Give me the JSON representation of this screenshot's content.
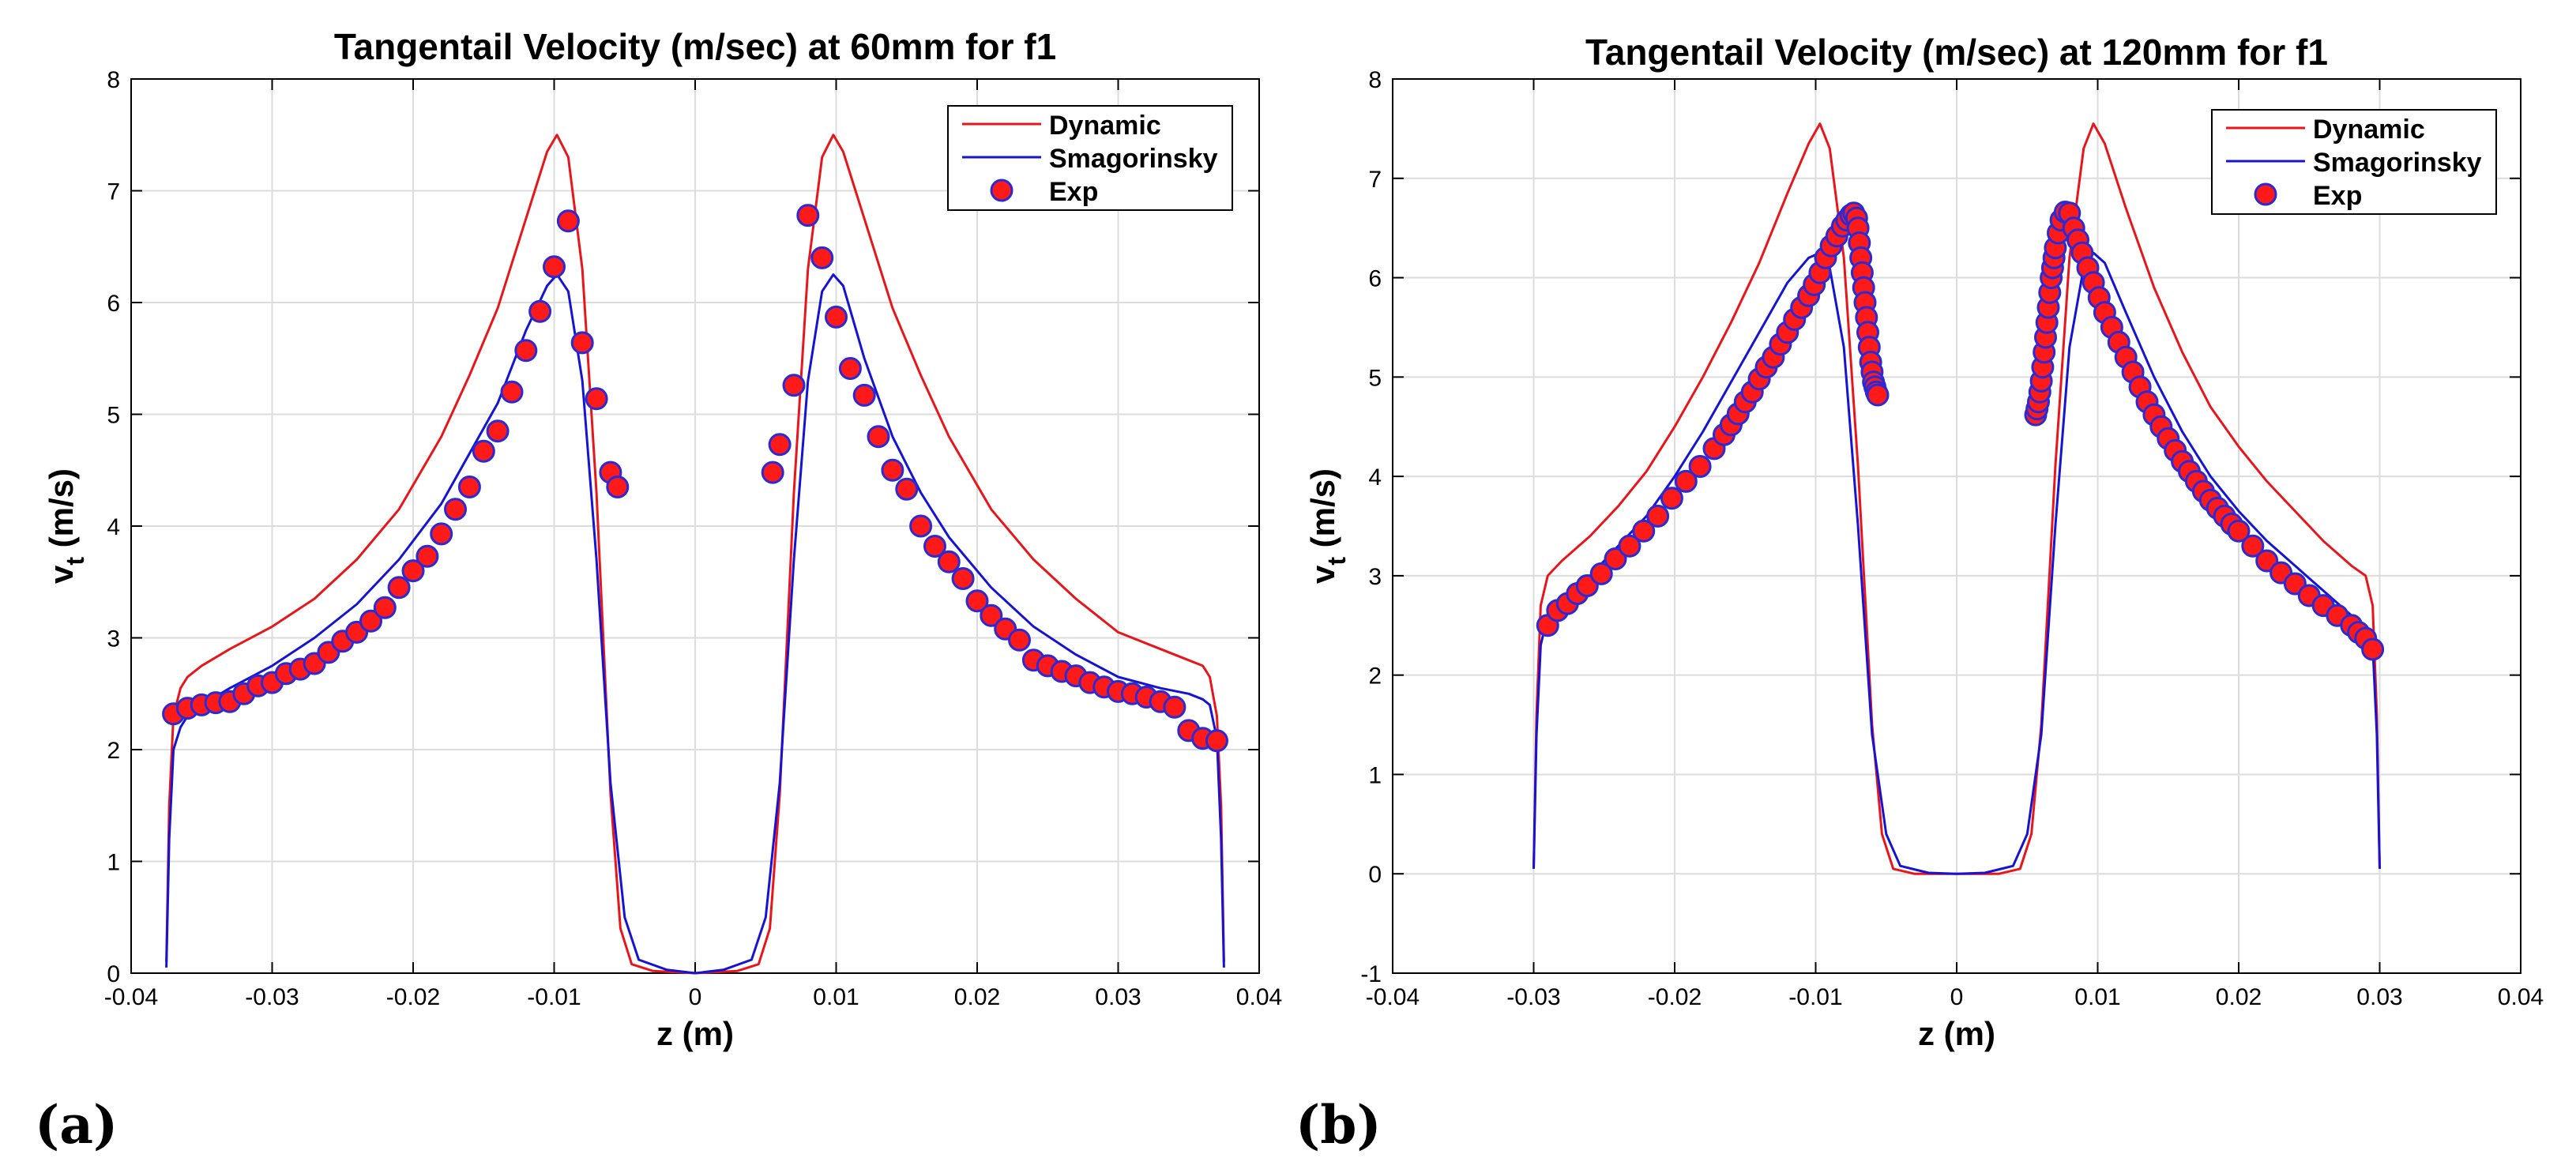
{
  "figure": {
    "panel_labels": [
      "(a)",
      "(b)"
    ]
  },
  "colors": {
    "dynamic": "#e8161b",
    "smagorinsky": "#1414d2",
    "exp_fill": "#ff1a1a",
    "exp_edge": "#2a2ad6",
    "grid": "#dcdcdc",
    "axis": "#000000"
  },
  "chart_data": [
    {
      "type": "line",
      "title": "Tangentail Velocity (m/sec) at 60mm for f1",
      "xlabel": "z (m)",
      "ylabel_main": "v",
      "ylabel_sub": "t",
      "ylabel_unit": " (m/s)",
      "xlim": [
        -0.04,
        0.04
      ],
      "ylim": [
        0,
        8
      ],
      "xticks": [
        -0.04,
        -0.03,
        -0.02,
        -0.01,
        0,
        0.01,
        0.02,
        0.03,
        0.04
      ],
      "xtick_labels": [
        "-0.04",
        "-0.03",
        "-0.02",
        "-0.01",
        "0",
        "0.01",
        "0.02",
        "0.03",
        "0.04"
      ],
      "yticks": [
        0,
        1,
        2,
        3,
        4,
        5,
        6,
        7,
        8
      ],
      "ytick_labels": [
        "0",
        "1",
        "2",
        "3",
        "4",
        "5",
        "6",
        "7",
        "8"
      ],
      "grid": true,
      "legend": {
        "position": "top-right",
        "entries": [
          "Dynamic",
          "Smagorinsky",
          "Exp"
        ]
      },
      "series": [
        {
          "name": "Dynamic",
          "kind": "line",
          "x": [
            -0.0375,
            -0.0373,
            -0.037,
            -0.0365,
            -0.036,
            -0.035,
            -0.033,
            -0.03,
            -0.027,
            -0.024,
            -0.021,
            -0.018,
            -0.016,
            -0.014,
            -0.012,
            -0.0105,
            -0.0098,
            -0.009,
            -0.008,
            -0.007,
            -0.006,
            -0.0053,
            -0.0045,
            -0.003,
            0,
            0.003,
            0.0045,
            0.0053,
            0.006,
            0.007,
            0.008,
            0.009,
            0.0098,
            0.0105,
            0.012,
            0.014,
            0.016,
            0.018,
            0.021,
            0.024,
            0.027,
            0.03,
            0.033,
            0.035,
            0.036,
            0.0365,
            0.037,
            0.0373,
            0.0375
          ],
          "y": [
            0.1,
            1.5,
            2.3,
            2.55,
            2.65,
            2.75,
            2.9,
            3.1,
            3.35,
            3.7,
            4.15,
            4.8,
            5.35,
            5.95,
            6.75,
            7.35,
            7.5,
            7.3,
            6.3,
            4.3,
            1.6,
            0.4,
            0.08,
            0.02,
            0.0,
            0.02,
            0.08,
            0.4,
            1.6,
            4.3,
            6.3,
            7.3,
            7.5,
            7.35,
            6.75,
            5.95,
            5.35,
            4.8,
            4.15,
            3.7,
            3.35,
            3.05,
            2.9,
            2.8,
            2.75,
            2.65,
            2.3,
            1.5,
            0.1
          ]
        },
        {
          "name": "Smagorinsky",
          "kind": "line",
          "x": [
            -0.0375,
            -0.0373,
            -0.037,
            -0.0365,
            -0.036,
            -0.035,
            -0.033,
            -0.03,
            -0.027,
            -0.024,
            -0.021,
            -0.018,
            -0.016,
            -0.014,
            -0.012,
            -0.0105,
            -0.0098,
            -0.009,
            -0.008,
            -0.007,
            -0.006,
            -0.005,
            -0.004,
            -0.002,
            0,
            0.002,
            0.004,
            0.005,
            0.006,
            0.007,
            0.008,
            0.009,
            0.0098,
            0.0105,
            0.012,
            0.014,
            0.016,
            0.018,
            0.021,
            0.024,
            0.027,
            0.03,
            0.033,
            0.035,
            0.036,
            0.0365,
            0.037,
            0.0373,
            0.0375
          ],
          "y": [
            0.05,
            1.2,
            2.0,
            2.2,
            2.3,
            2.4,
            2.55,
            2.75,
            3.0,
            3.3,
            3.7,
            4.2,
            4.65,
            5.1,
            5.75,
            6.15,
            6.25,
            6.1,
            5.3,
            3.7,
            1.7,
            0.5,
            0.12,
            0.03,
            0.0,
            0.03,
            0.12,
            0.5,
            1.7,
            3.7,
            5.3,
            6.1,
            6.25,
            6.15,
            5.5,
            4.8,
            4.3,
            3.9,
            3.45,
            3.1,
            2.85,
            2.65,
            2.55,
            2.5,
            2.45,
            2.4,
            2.1,
            1.2,
            0.05
          ]
        },
        {
          "name": "Exp",
          "kind": "scatter",
          "x": [
            -0.037,
            -0.036,
            -0.035,
            -0.034,
            -0.033,
            -0.032,
            -0.031,
            -0.03,
            -0.029,
            -0.028,
            -0.027,
            -0.026,
            -0.025,
            -0.024,
            -0.023,
            -0.022,
            -0.021,
            -0.02,
            -0.019,
            -0.018,
            -0.017,
            -0.016,
            -0.015,
            -0.014,
            -0.013,
            -0.012,
            -0.011,
            -0.01,
            -0.009,
            -0.008,
            -0.007,
            -0.006,
            -0.0055,
            0.0055,
            0.006,
            0.007,
            0.008,
            0.009,
            0.01,
            0.011,
            0.012,
            0.013,
            0.014,
            0.015,
            0.016,
            0.017,
            0.018,
            0.019,
            0.02,
            0.021,
            0.022,
            0.023,
            0.024,
            0.025,
            0.026,
            0.027,
            0.028,
            0.029,
            0.03,
            0.031,
            0.032,
            0.033,
            0.034,
            0.035,
            0.036,
            0.037
          ],
          "y": [
            2.32,
            2.37,
            2.4,
            2.42,
            2.43,
            2.5,
            2.57,
            2.6,
            2.68,
            2.72,
            2.77,
            2.87,
            2.97,
            3.05,
            3.15,
            3.27,
            3.45,
            3.6,
            3.73,
            3.93,
            4.15,
            4.35,
            4.67,
            4.85,
            5.2,
            5.57,
            5.92,
            6.32,
            6.73,
            5.64,
            5.14,
            4.48,
            4.35,
            4.48,
            4.73,
            5.26,
            6.78,
            6.4,
            5.87,
            5.41,
            5.17,
            4.8,
            4.5,
            4.33,
            4.0,
            3.82,
            3.68,
            3.53,
            3.33,
            3.2,
            3.08,
            2.98,
            2.8,
            2.75,
            2.7,
            2.66,
            2.6,
            2.56,
            2.52,
            2.5,
            2.47,
            2.43,
            2.38,
            2.17,
            2.1,
            2.08
          ]
        }
      ]
    },
    {
      "type": "line",
      "title": "Tangentail Velocity (m/sec) at 120mm for f1",
      "xlabel": "z (m)",
      "ylabel_main": "v",
      "ylabel_sub": "t",
      "ylabel_unit": " (m/s)",
      "xlim": [
        -0.04,
        0.04
      ],
      "ylim": [
        -1,
        8
      ],
      "xticks": [
        -0.04,
        -0.03,
        -0.02,
        -0.01,
        0,
        0.01,
        0.02,
        0.03,
        0.04
      ],
      "xtick_labels": [
        "-0.04",
        "-0.03",
        "-0.02",
        "-0.01",
        "0",
        "0.01",
        "0.02",
        "0.03",
        "0.04"
      ],
      "yticks": [
        -1,
        0,
        1,
        2,
        3,
        4,
        5,
        6,
        7,
        8
      ],
      "ytick_labels": [
        "-1",
        "0",
        "1",
        "2",
        "3",
        "4",
        "5",
        "6",
        "7",
        "8"
      ],
      "grid": true,
      "legend": {
        "position": "top-right",
        "entries": [
          "Dynamic",
          "Smagorinsky",
          "Exp"
        ]
      },
      "series": [
        {
          "name": "Dynamic",
          "kind": "line",
          "x": [
            -0.03,
            -0.0298,
            -0.0295,
            -0.029,
            -0.028,
            -0.026,
            -0.024,
            -0.022,
            -0.02,
            -0.018,
            -0.016,
            -0.014,
            -0.012,
            -0.0105,
            -0.0097,
            -0.009,
            -0.008,
            -0.007,
            -0.006,
            -0.0053,
            -0.0045,
            -0.003,
            0,
            0.003,
            0.0045,
            0.0053,
            0.006,
            0.007,
            0.008,
            0.009,
            0.0097,
            0.0105,
            0.012,
            0.014,
            0.016,
            0.018,
            0.02,
            0.022,
            0.024,
            0.026,
            0.028,
            0.029,
            0.0295,
            0.0298,
            0.03
          ],
          "y": [
            0.05,
            1.6,
            2.7,
            3.0,
            3.15,
            3.4,
            3.7,
            4.05,
            4.5,
            5.0,
            5.55,
            6.15,
            6.85,
            7.35,
            7.55,
            7.3,
            6.2,
            4.1,
            1.5,
            0.4,
            0.05,
            0.0,
            0.0,
            0.0,
            0.05,
            0.4,
            1.5,
            4.1,
            6.2,
            7.3,
            7.55,
            7.35,
            6.7,
            5.9,
            5.25,
            4.7,
            4.3,
            3.95,
            3.65,
            3.35,
            3.1,
            3.0,
            2.7,
            1.6,
            0.05
          ]
        },
        {
          "name": "Smagorinsky",
          "kind": "line",
          "x": [
            -0.03,
            -0.0298,
            -0.0295,
            -0.029,
            -0.028,
            -0.026,
            -0.024,
            -0.022,
            -0.02,
            -0.018,
            -0.016,
            -0.014,
            -0.012,
            -0.0105,
            -0.0097,
            -0.009,
            -0.008,
            -0.007,
            -0.006,
            -0.005,
            -0.004,
            -0.002,
            0,
            0.002,
            0.004,
            0.005,
            0.006,
            0.007,
            0.008,
            0.009,
            0.0097,
            0.0105,
            0.012,
            0.014,
            0.016,
            0.018,
            0.02,
            0.022,
            0.024,
            0.026,
            0.028,
            0.029,
            0.0295,
            0.0298,
            0.03
          ],
          "y": [
            0.05,
            1.4,
            2.3,
            2.6,
            2.75,
            3.0,
            3.3,
            3.6,
            4.0,
            4.45,
            4.95,
            5.45,
            5.95,
            6.2,
            6.25,
            6.1,
            5.3,
            3.5,
            1.4,
            0.4,
            0.08,
            0.01,
            0.0,
            0.01,
            0.08,
            0.4,
            1.4,
            3.5,
            5.3,
            6.1,
            6.25,
            6.15,
            5.65,
            5.0,
            4.45,
            4.0,
            3.65,
            3.35,
            3.1,
            2.85,
            2.6,
            2.45,
            2.3,
            1.4,
            0.05
          ]
        },
        {
          "name": "Exp",
          "kind": "scatter",
          "x": [
            -0.029,
            -0.0283,
            -0.0276,
            -0.0269,
            -0.0262,
            -0.0252,
            -0.0242,
            -0.0232,
            -0.0222,
            -0.0212,
            -0.0202,
            -0.0192,
            -0.0182,
            -0.0172,
            -0.0165,
            -0.016,
            -0.0155,
            -0.015,
            -0.0145,
            -0.014,
            -0.0135,
            -0.013,
            -0.0125,
            -0.012,
            -0.0115,
            -0.011,
            -0.0105,
            -0.0101,
            -0.0097,
            -0.0093,
            -0.0089,
            -0.0085,
            -0.0081,
            -0.0078,
            -0.0075,
            -0.0073,
            -0.0071,
            -0.007,
            -0.0069,
            -0.0068,
            -0.0067,
            -0.0066,
            -0.0065,
            -0.0064,
            -0.0063,
            -0.0062,
            -0.0061,
            -0.006,
            -0.0059,
            -0.0058,
            -0.0057,
            -0.0056,
            0.0056,
            0.0057,
            0.0058,
            0.0059,
            0.006,
            0.0061,
            0.0062,
            0.0063,
            0.0064,
            0.0065,
            0.0066,
            0.0067,
            0.0068,
            0.0069,
            0.007,
            0.0072,
            0.0074,
            0.0077,
            0.008,
            0.0083,
            0.0086,
            0.0089,
            0.0093,
            0.0097,
            0.0101,
            0.0105,
            0.011,
            0.0115,
            0.012,
            0.0125,
            0.013,
            0.0135,
            0.014,
            0.0145,
            0.015,
            0.0155,
            0.016,
            0.0165,
            0.017,
            0.0175,
            0.018,
            0.0185,
            0.019,
            0.0195,
            0.02,
            0.021,
            0.022,
            0.023,
            0.024,
            0.025,
            0.026,
            0.027,
            0.028,
            0.0285,
            0.029,
            0.0295
          ],
          "y": [
            2.5,
            2.65,
            2.72,
            2.82,
            2.9,
            3.02,
            3.17,
            3.3,
            3.45,
            3.6,
            3.78,
            3.95,
            4.1,
            4.28,
            4.42,
            4.52,
            4.63,
            4.75,
            4.85,
            4.98,
            5.1,
            5.2,
            5.33,
            5.45,
            5.58,
            5.7,
            5.82,
            5.93,
            6.05,
            6.2,
            6.32,
            6.42,
            6.52,
            6.58,
            6.63,
            6.65,
            6.6,
            6.5,
            6.35,
            6.2,
            6.05,
            5.9,
            5.75,
            5.6,
            5.45,
            5.3,
            5.15,
            5.05,
            4.95,
            4.9,
            4.85,
            4.82,
            4.62,
            4.68,
            4.75,
            4.85,
            4.96,
            5.1,
            5.25,
            5.4,
            5.55,
            5.7,
            5.85,
            6.0,
            6.1,
            6.2,
            6.3,
            6.45,
            6.58,
            6.66,
            6.65,
            6.5,
            6.38,
            6.25,
            6.1,
            5.95,
            5.8,
            5.65,
            5.5,
            5.35,
            5.2,
            5.05,
            4.9,
            4.75,
            4.62,
            4.5,
            4.38,
            4.26,
            4.15,
            4.05,
            3.95,
            3.85,
            3.76,
            3.68,
            3.6,
            3.52,
            3.45,
            3.3,
            3.15,
            3.03,
            2.92,
            2.8,
            2.7,
            2.6,
            2.5,
            2.43,
            2.37,
            2.26
          ]
        }
      ]
    }
  ]
}
